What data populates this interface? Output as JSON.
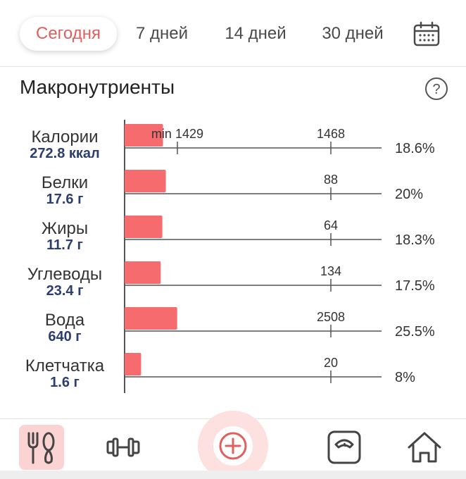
{
  "tabs": [
    {
      "label": "Сегодня",
      "active": true
    },
    {
      "label": "7 дней",
      "active": false
    },
    {
      "label": "14 дней",
      "active": false
    },
    {
      "label": "30 дней",
      "active": false
    }
  ],
  "icons": {
    "calendar": "calendar-icon",
    "help": "help-icon"
  },
  "section": {
    "title": "Макронутриенты"
  },
  "colors": {
    "accent": "#e0605e",
    "bar": "#f56b6e",
    "value_text": "#2c3e6e",
    "nav_active_bg": "#fbd3d3"
  },
  "chart_data": {
    "type": "bar",
    "rows": [
      {
        "name": "Калории",
        "value_label": "272.8 ккал",
        "min_label": "min 1429",
        "target_label": "1468",
        "percent_label": "18.6%",
        "percent": 18.6
      },
      {
        "name": "Белки",
        "value_label": "17.6 г",
        "min_label": "",
        "target_label": "88",
        "percent_label": "20%",
        "percent": 20
      },
      {
        "name": "Жиры",
        "value_label": "11.7 г",
        "min_label": "",
        "target_label": "64",
        "percent_label": "18.3%",
        "percent": 18.3
      },
      {
        "name": "Углеводы",
        "value_label": "23.4 г",
        "min_label": "",
        "target_label": "134",
        "percent_label": "17.5%",
        "percent": 17.5
      },
      {
        "name": "Вода",
        "value_label": "640 г",
        "min_label": "",
        "target_label": "2508",
        "percent_label": "25.5%",
        "percent": 25.5
      },
      {
        "name": "Клетчатка",
        "value_label": "1.6 г",
        "min_label": "",
        "target_label": "20",
        "percent_label": "8%",
        "percent": 8
      }
    ],
    "min_marker_percent": 97.3
  },
  "bottom_nav": [
    {
      "name": "food-nav",
      "icon": "fork-spoon-icon",
      "active": true
    },
    {
      "name": "exercise-nav",
      "icon": "dumbbell-icon",
      "active": false
    },
    {
      "name": "add-nav",
      "icon": "plus-circle-icon",
      "active": false
    },
    {
      "name": "weight-nav",
      "icon": "scale-icon",
      "active": false
    },
    {
      "name": "home-nav",
      "icon": "home-icon",
      "active": false
    }
  ]
}
